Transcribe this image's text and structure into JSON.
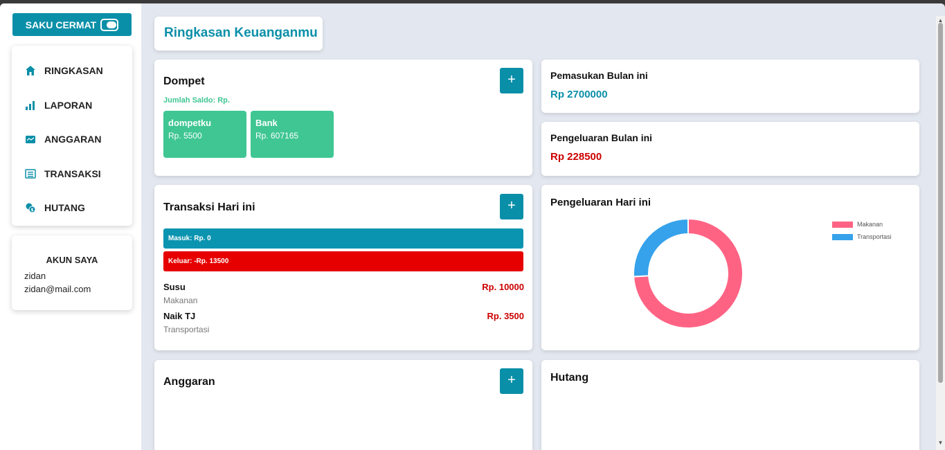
{
  "brand": {
    "title": "SAKU CERMAT"
  },
  "nav": {
    "items": [
      {
        "label": "RINGKASAN",
        "icon": "home-icon"
      },
      {
        "label": "LAPORAN",
        "icon": "bar-chart-icon"
      },
      {
        "label": "ANGGARAN",
        "icon": "wallet-icon"
      },
      {
        "label": "TRANSAKSI",
        "icon": "list-icon"
      },
      {
        "label": "HUTANG",
        "icon": "coins-icon"
      }
    ]
  },
  "account": {
    "title": "AKUN SAYA",
    "name": "zidan",
    "email": "zidan@mail.com"
  },
  "page": {
    "title": "Ringkasan Keuanganmu"
  },
  "wallet_card": {
    "title": "Dompet",
    "add_label": "+",
    "balance_label": "Jumlah Saldo: Rp.",
    "wallets": [
      {
        "name": "dompetku",
        "amount": "Rp. 5500"
      },
      {
        "name": "Bank",
        "amount": "Rp. 607165"
      }
    ]
  },
  "income_card": {
    "title": "Pemasukan Bulan ini",
    "value": "Rp 2700000"
  },
  "expense_card": {
    "title": "Pengeluaran Bulan ini",
    "value": "Rp 228500"
  },
  "today_tx": {
    "title": "Transaksi Hari ini",
    "add_label": "+",
    "in_label": "Masuk: Rp. 0",
    "out_label": "Keluar: -Rp. 13500",
    "items": [
      {
        "name": "Susu",
        "category": "Makanan",
        "amount": "Rp. 10000"
      },
      {
        "name": "Naik TJ",
        "category": "Transportasi",
        "amount": "Rp. 3500"
      }
    ]
  },
  "today_expense_chart": {
    "title": "Pengeluaran Hari ini"
  },
  "chart_data": {
    "type": "pie",
    "categories": [
      "Makanan",
      "Transportasi"
    ],
    "values": [
      10000,
      3500
    ],
    "colors": [
      "#ff6384",
      "#36a2eb"
    ],
    "legend": "top-right",
    "donut": true
  },
  "budget_card": {
    "title": "Anggaran",
    "add_label": "+"
  },
  "debt_card": {
    "title": "Hutang"
  },
  "colors": {
    "accent": "#0a8fa8",
    "green": "#3fc693",
    "red": "#e60000",
    "expense_text": "#cc0000"
  }
}
